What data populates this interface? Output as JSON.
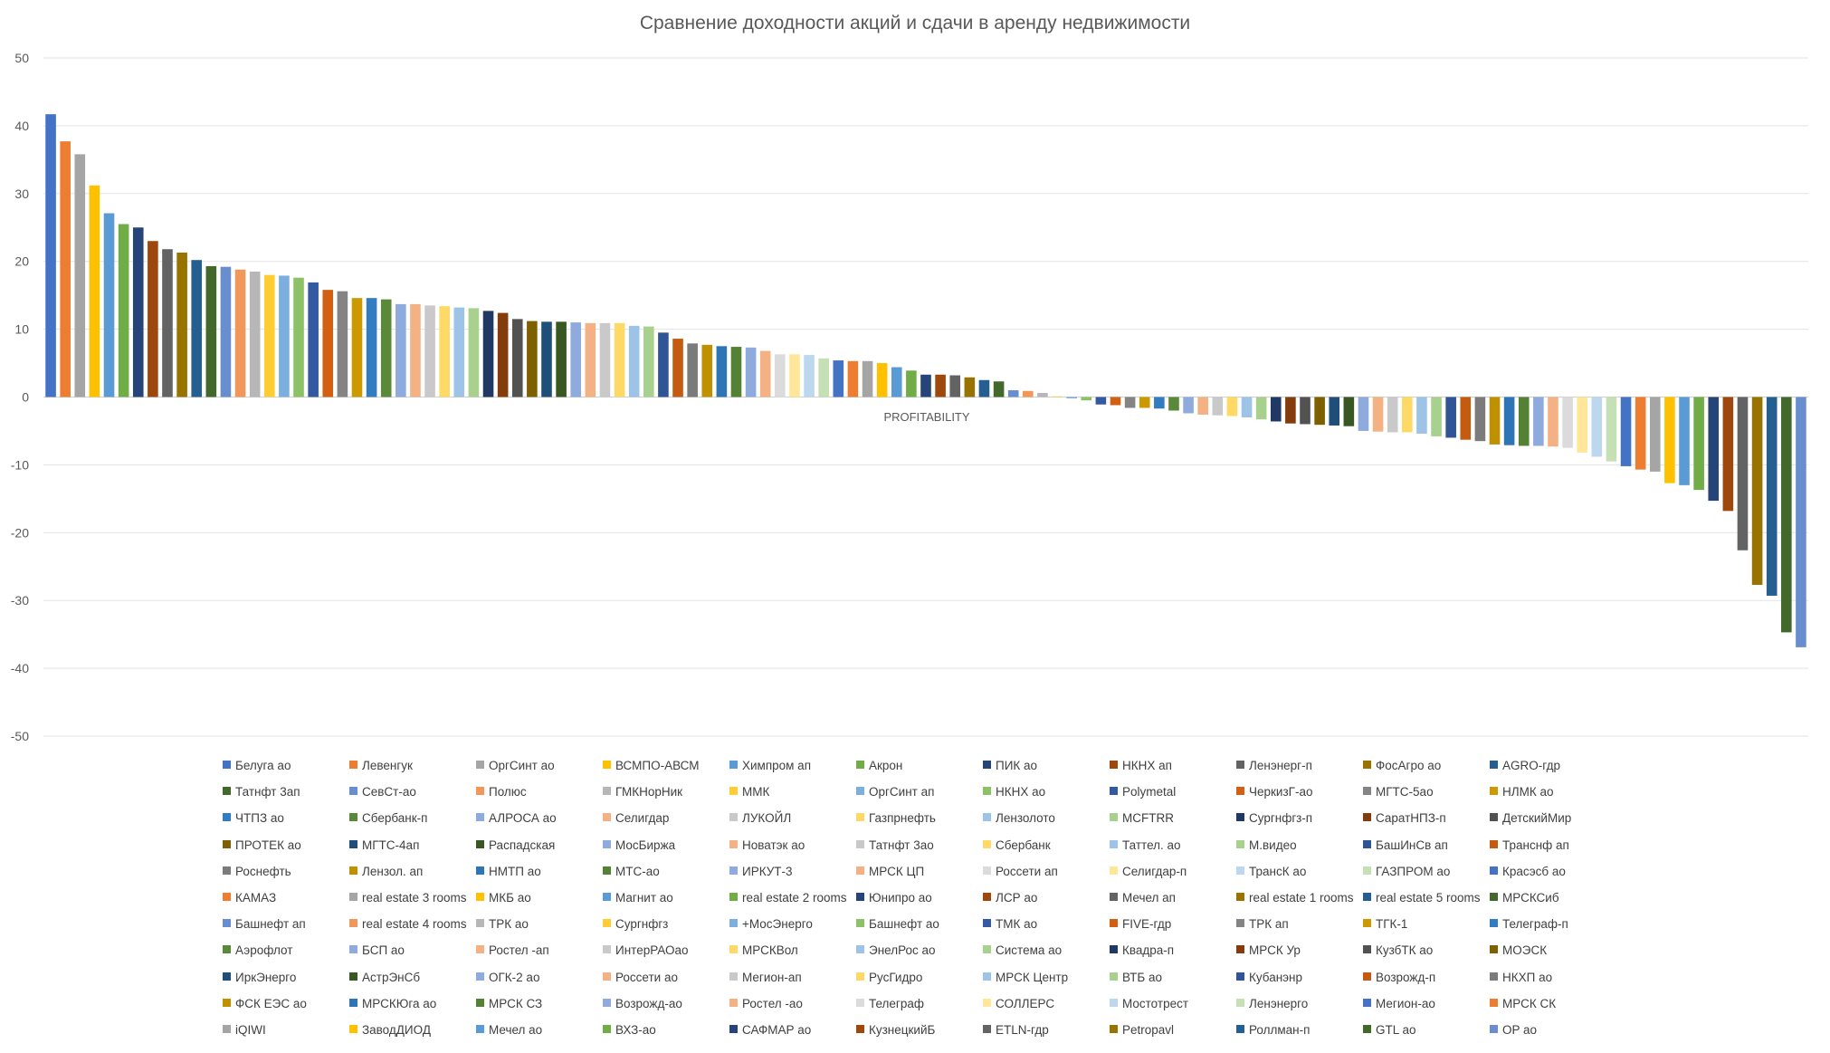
{
  "chart_data": {
    "type": "bar",
    "title": "Сравнение доходности акций и сдачи в аренду недвижимости",
    "xlabel": "",
    "ylabel": "",
    "category_label": "PROFITABILITY",
    "ylim": [
      -50,
      50
    ],
    "yticks": [
      50,
      40,
      30,
      20,
      10,
      0,
      -10,
      -20,
      -30,
      -40,
      -50
    ],
    "grid": true,
    "legend_position": "bottom",
    "series": [
      {
        "name": "Белуга ао",
        "value": 41.7,
        "color": "#4472C4"
      },
      {
        "name": "Левенгук",
        "value": 37.7,
        "color": "#ED7D31"
      },
      {
        "name": "ОргСинт ао",
        "value": 35.8,
        "color": "#A5A5A5"
      },
      {
        "name": "ВСМПО-АВСМ",
        "value": 31.2,
        "color": "#FFC000"
      },
      {
        "name": "Химпром ап",
        "value": 27.1,
        "color": "#5B9BD5"
      },
      {
        "name": "Акрон",
        "value": 25.5,
        "color": "#70AD47"
      },
      {
        "name": "ПИК ао",
        "value": 25.0,
        "color": "#264478"
      },
      {
        "name": "НКНХ ап",
        "value": 23.0,
        "color": "#9E480E"
      },
      {
        "name": "Ленэнерг-п",
        "value": 21.8,
        "color": "#636363"
      },
      {
        "name": "ФосАгро ао",
        "value": 21.3,
        "color": "#997300"
      },
      {
        "name": "AGRO-гдр",
        "value": 20.2,
        "color": "#255E91"
      },
      {
        "name": "Татнфт 3ап",
        "value": 19.3,
        "color": "#43682B"
      },
      {
        "name": "СевСт-ао",
        "value": 19.2,
        "color": "#698ED0"
      },
      {
        "name": "Полюс",
        "value": 18.8,
        "color": "#F1975A"
      },
      {
        "name": "ГМКНорНик",
        "value": 18.5,
        "color": "#B7B7B7"
      },
      {
        "name": "ММК",
        "value": 18.0,
        "color": "#FFCD33"
      },
      {
        "name": "ОргСинт ап",
        "value": 17.9,
        "color": "#7CAFDD"
      },
      {
        "name": "НКНХ ао",
        "value": 17.6,
        "color": "#8CC168"
      },
      {
        "name": "Polymetal",
        "value": 16.9,
        "color": "#335AA1"
      },
      {
        "name": "ЧеркизГ-ао",
        "value": 15.8,
        "color": "#D26012"
      },
      {
        "name": "МГТС-5ао",
        "value": 15.6,
        "color": "#848484"
      },
      {
        "name": "НЛМК ао",
        "value": 14.6,
        "color": "#CC9A00"
      },
      {
        "name": "ЧТПЗ ао",
        "value": 14.6,
        "color": "#327DC2"
      },
      {
        "name": "Сбербанк-п",
        "value": 14.4,
        "color": "#5A8A39"
      },
      {
        "name": "АЛРОСА ао",
        "value": 13.7,
        "color": "#8FAADC"
      },
      {
        "name": "Селигдар",
        "value": 13.7,
        "color": "#F4B183"
      },
      {
        "name": "ЛУКОЙЛ",
        "value": 13.5,
        "color": "#C9C9C9"
      },
      {
        "name": "Газпрнефть",
        "value": 13.4,
        "color": "#FFD966"
      },
      {
        "name": "Лензолото",
        "value": 13.2,
        "color": "#9DC3E6"
      },
      {
        "name": "MCFTRR",
        "value": 13.1,
        "color": "#A9D18E"
      },
      {
        "name": "Сургнфгз-п",
        "value": 12.7,
        "color": "#203864"
      },
      {
        "name": "СаратНПЗ-п",
        "value": 12.4,
        "color": "#843C0C"
      },
      {
        "name": "ДетскийМир",
        "value": 11.5,
        "color": "#525252"
      },
      {
        "name": "ПРОТЕК ао",
        "value": 11.2,
        "color": "#7F6000"
      },
      {
        "name": "МГТС-4ап",
        "value": 11.1,
        "color": "#1F4E79"
      },
      {
        "name": "Распадская",
        "value": 11.1,
        "color": "#385723"
      },
      {
        "name": "МосБиржа",
        "value": 11.0,
        "color": "#8FAADC"
      },
      {
        "name": "Новатэк ао",
        "value": 10.9,
        "color": "#F4B183"
      },
      {
        "name": "Татнфт 3ао",
        "value": 10.9,
        "color": "#C9C9C9"
      },
      {
        "name": "Сбербанк",
        "value": 10.9,
        "color": "#FFD966"
      },
      {
        "name": "Таттел. ао",
        "value": 10.5,
        "color": "#9DC3E6"
      },
      {
        "name": "М.видео",
        "value": 10.4,
        "color": "#A9D18E"
      },
      {
        "name": "БашИнСв ап",
        "value": 9.5,
        "color": "#2F5597"
      },
      {
        "name": "Транснф ап",
        "value": 8.6,
        "color": "#C55A11"
      },
      {
        "name": "Роснефть",
        "value": 7.9,
        "color": "#7B7B7B"
      },
      {
        "name": "Лензол. ап",
        "value": 7.7,
        "color": "#BF9000"
      },
      {
        "name": "НМТП ао",
        "value": 7.5,
        "color": "#2E75B6"
      },
      {
        "name": "МТС-ао",
        "value": 7.4,
        "color": "#548235"
      },
      {
        "name": "ИРКУТ-3",
        "value": 7.3,
        "color": "#8FAADC"
      },
      {
        "name": "МРСК ЦП",
        "value": 6.8,
        "color": "#F4B183"
      },
      {
        "name": "Россети ап",
        "value": 6.3,
        "color": "#DBDBDB"
      },
      {
        "name": "Селигдар-п",
        "value": 6.3,
        "color": "#FFE699"
      },
      {
        "name": "ТрансК ао",
        "value": 6.2,
        "color": "#BDD7EE"
      },
      {
        "name": "ГАЗПРОМ ао",
        "value": 5.7,
        "color": "#C5E0B4"
      },
      {
        "name": "Красэсб ао",
        "value": 5.4,
        "color": "#4472C4"
      },
      {
        "name": "КАМАЗ",
        "value": 5.3,
        "color": "#ED7D31"
      },
      {
        "name": "real estate 3 rooms",
        "value": 5.3,
        "color": "#A5A5A5"
      },
      {
        "name": "МКБ ао",
        "value": 5.0,
        "color": "#FFC000"
      },
      {
        "name": "Магнит ао",
        "value": 4.4,
        "color": "#5B9BD5"
      },
      {
        "name": "real estate 2 rooms",
        "value": 3.9,
        "color": "#70AD47"
      },
      {
        "name": "Юнипро ао",
        "value": 3.3,
        "color": "#264478"
      },
      {
        "name": "ЛСР ао",
        "value": 3.3,
        "color": "#9E480E"
      },
      {
        "name": "Мечел ап",
        "value": 3.2,
        "color": "#636363"
      },
      {
        "name": "real estate 1 rooms",
        "value": 2.9,
        "color": "#997300"
      },
      {
        "name": "real estate 5 rooms",
        "value": 2.5,
        "color": "#255E91"
      },
      {
        "name": "МРСКСиб",
        "value": 2.3,
        "color": "#43682B"
      },
      {
        "name": "Башнефт ап",
        "value": 1.0,
        "color": "#698ED0"
      },
      {
        "name": "real estate 4 rooms",
        "value": 0.9,
        "color": "#F1975A"
      },
      {
        "name": "ТРК ао",
        "value": 0.6,
        "color": "#B7B7B7"
      },
      {
        "name": "Сургнфгз",
        "value": 0.1,
        "color": "#FFCD33"
      },
      {
        "name": "+МосЭнерго",
        "value": -0.2,
        "color": "#7CAFDD"
      },
      {
        "name": "Башнефт ао",
        "value": -0.5,
        "color": "#8CC168"
      },
      {
        "name": "ТМК ао",
        "value": -1.1,
        "color": "#335AA1"
      },
      {
        "name": "FIVE-гдр",
        "value": -1.2,
        "color": "#D26012"
      },
      {
        "name": "ТРК ап",
        "value": -1.6,
        "color": "#848484"
      },
      {
        "name": "ТГК-1",
        "value": -1.6,
        "color": "#CC9A00"
      },
      {
        "name": "Телеграф-п",
        "value": -1.7,
        "color": "#327DC2"
      },
      {
        "name": "Аэрофлот",
        "value": -2.0,
        "color": "#5A8A39"
      },
      {
        "name": "БСП ао",
        "value": -2.4,
        "color": "#8FAADC"
      },
      {
        "name": "Ростел -ап",
        "value": -2.6,
        "color": "#F4B183"
      },
      {
        "name": "ИнтерРАОао",
        "value": -2.7,
        "color": "#C9C9C9"
      },
      {
        "name": "МРСКВол",
        "value": -2.8,
        "color": "#FFD966"
      },
      {
        "name": "ЭнелРос ао",
        "value": -3.0,
        "color": "#9DC3E6"
      },
      {
        "name": "Система ао",
        "value": -3.3,
        "color": "#A9D18E"
      },
      {
        "name": "Квадра-п",
        "value": -3.6,
        "color": "#203864"
      },
      {
        "name": "МРСК Ур",
        "value": -3.9,
        "color": "#843C0C"
      },
      {
        "name": "КузбТК ао",
        "value": -4.0,
        "color": "#525252"
      },
      {
        "name": "МОЭСК",
        "value": -4.1,
        "color": "#7F6000"
      },
      {
        "name": "ИркЭнерго",
        "value": -4.2,
        "color": "#1F4E79"
      },
      {
        "name": "АстрЭнСб",
        "value": -4.3,
        "color": "#385723"
      },
      {
        "name": "ОГК-2 ао",
        "value": -5.0,
        "color": "#8FAADC"
      },
      {
        "name": "Россети ао",
        "value": -5.1,
        "color": "#F4B183"
      },
      {
        "name": "Мегион-ап",
        "value": -5.2,
        "color": "#C9C9C9"
      },
      {
        "name": "РусГидро",
        "value": -5.2,
        "color": "#FFD966"
      },
      {
        "name": "МРСК Центр",
        "value": -5.4,
        "color": "#9DC3E6"
      },
      {
        "name": "ВТБ ао",
        "value": -5.8,
        "color": "#A9D18E"
      },
      {
        "name": "Кубанэнр",
        "value": -6.0,
        "color": "#2F5597"
      },
      {
        "name": "Возрожд-п",
        "value": -6.3,
        "color": "#C55A11"
      },
      {
        "name": "НКХП ао",
        "value": -6.5,
        "color": "#7B7B7B"
      },
      {
        "name": "ФСК ЕЭС ао",
        "value": -7.0,
        "color": "#BF9000"
      },
      {
        "name": "МРСКЮга ао",
        "value": -7.1,
        "color": "#2E75B6"
      },
      {
        "name": "МРСК СЗ",
        "value": -7.2,
        "color": "#548235"
      },
      {
        "name": "Возрожд-ао",
        "value": -7.2,
        "color": "#8FAADC"
      },
      {
        "name": "Ростел -ао",
        "value": -7.3,
        "color": "#F4B183"
      },
      {
        "name": "Телеграф",
        "value": -7.5,
        "color": "#DBDBDB"
      },
      {
        "name": "СОЛЛЕРС",
        "value": -8.2,
        "color": "#FFE699"
      },
      {
        "name": "Мостотрест",
        "value": -8.8,
        "color": "#BDD7EE"
      },
      {
        "name": "Ленэнерго",
        "value": -9.5,
        "color": "#C5E0B4"
      },
      {
        "name": "Мегион-ао",
        "value": -10.2,
        "color": "#4472C4"
      },
      {
        "name": "МРСК СК",
        "value": -10.7,
        "color": "#ED7D31"
      },
      {
        "name": "iQIWI",
        "value": -11.0,
        "color": "#A5A5A5"
      },
      {
        "name": "ЗаводДИОД",
        "value": -12.7,
        "color": "#FFC000"
      },
      {
        "name": "Мечел ао",
        "value": -13.0,
        "color": "#5B9BD5"
      },
      {
        "name": "ВХЗ-ао",
        "value": -13.7,
        "color": "#70AD47"
      },
      {
        "name": "САФМАР ао",
        "value": -15.3,
        "color": "#264478"
      },
      {
        "name": "КузнецкийБ",
        "value": -16.8,
        "color": "#9E480E"
      },
      {
        "name": "ETLN-гдр",
        "value": -22.6,
        "color": "#636363"
      },
      {
        "name": "Petropavl",
        "value": -27.7,
        "color": "#997300"
      },
      {
        "name": "Роллман-п",
        "value": -29.3,
        "color": "#255E91"
      },
      {
        "name": "GTL ао",
        "value": -34.7,
        "color": "#43682B"
      },
      {
        "name": "OP ао",
        "value": -36.9,
        "color": "#698ED0"
      }
    ]
  }
}
